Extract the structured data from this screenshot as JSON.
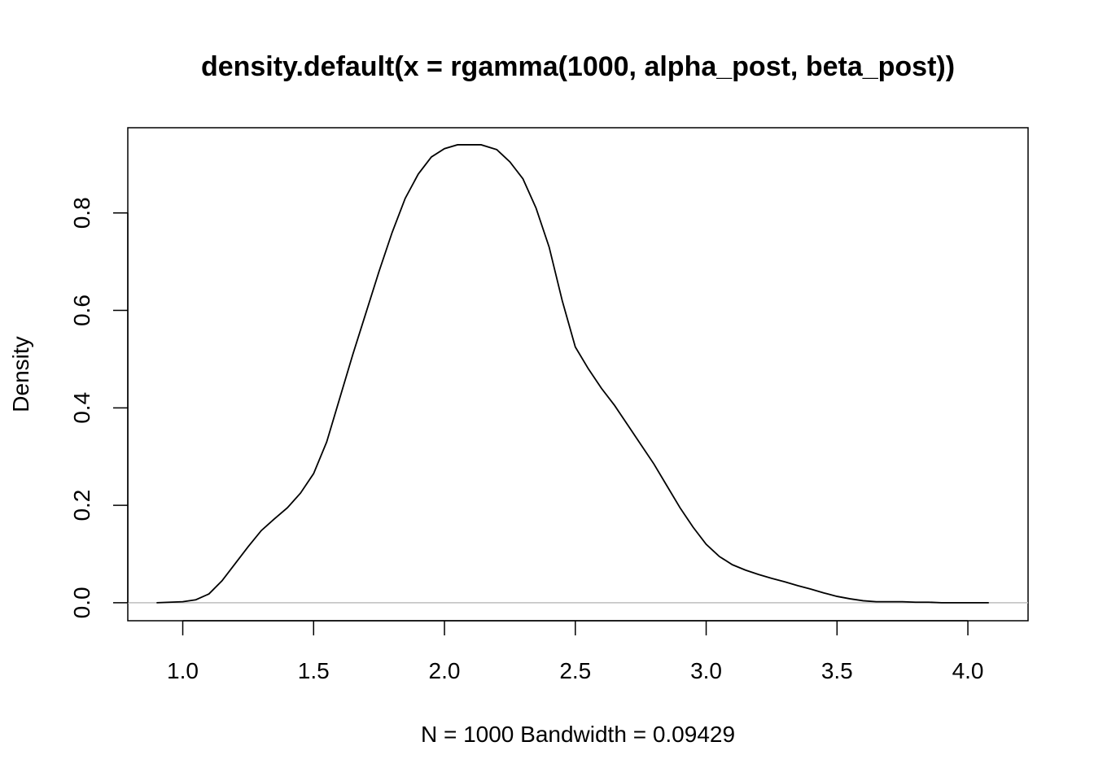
{
  "chart_data": {
    "type": "line",
    "title": "density.default(x = rgamma(1000, alpha_post, beta_post))",
    "xlabel": "N = 1000   Bandwidth = 0.09429",
    "ylabel": "Density",
    "xlim": [
      0.79,
      4.23
    ],
    "ylim": [
      -0.037,
      0.975
    ],
    "x_ticks": [
      1.0,
      1.5,
      2.0,
      2.5,
      3.0,
      3.5,
      4.0
    ],
    "x_tick_labels": [
      "1.0",
      "1.5",
      "2.0",
      "2.5",
      "3.0",
      "3.5",
      "4.0"
    ],
    "y_ticks": [
      0.0,
      0.2,
      0.4,
      0.6,
      0.8
    ],
    "y_tick_labels": [
      "0.0",
      "0.2",
      "0.4",
      "0.6",
      "0.8"
    ],
    "grid": false,
    "baseline_color": "#bebebe",
    "line_color": "#000000",
    "series": [
      {
        "x": [
          0.9,
          0.95,
          1.0,
          1.05,
          1.1,
          1.15,
          1.2,
          1.25,
          1.3,
          1.35,
          1.4,
          1.45,
          1.5,
          1.55,
          1.6,
          1.65,
          1.7,
          1.75,
          1.8,
          1.85,
          1.9,
          1.95,
          2.0,
          2.05,
          2.1,
          2.14,
          2.2,
          2.25,
          2.3,
          2.35,
          2.4,
          2.45,
          2.5,
          2.55,
          2.6,
          2.65,
          2.7,
          2.75,
          2.8,
          2.85,
          2.9,
          2.95,
          3.0,
          3.05,
          3.1,
          3.15,
          3.2,
          3.25,
          3.3,
          3.35,
          3.4,
          3.45,
          3.5,
          3.55,
          3.6,
          3.65,
          3.7,
          3.75,
          3.8,
          3.85,
          3.9,
          3.95,
          4.0,
          4.05,
          4.08
        ],
        "y": [
          0.0,
          0.001,
          0.002,
          0.006,
          0.018,
          0.045,
          0.08,
          0.115,
          0.148,
          0.172,
          0.195,
          0.225,
          0.265,
          0.33,
          0.42,
          0.51,
          0.595,
          0.68,
          0.76,
          0.83,
          0.88,
          0.915,
          0.932,
          0.94,
          0.94,
          0.94,
          0.93,
          0.905,
          0.87,
          0.81,
          0.73,
          0.62,
          0.525,
          0.48,
          0.44,
          0.405,
          0.365,
          0.325,
          0.285,
          0.24,
          0.195,
          0.155,
          0.12,
          0.095,
          0.078,
          0.067,
          0.058,
          0.05,
          0.043,
          0.035,
          0.028,
          0.02,
          0.013,
          0.008,
          0.004,
          0.002,
          0.002,
          0.002,
          0.001,
          0.001,
          0.0,
          0.0,
          0.0,
          0.0,
          0.0
        ]
      }
    ]
  }
}
